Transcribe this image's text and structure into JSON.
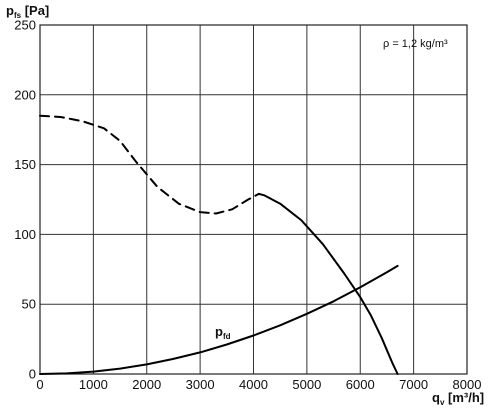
{
  "chart_data": {
    "type": "line",
    "xlabel_main": "q",
    "xlabel_sub": "v",
    "xlabel_unit": " [m³/h]",
    "ylabel_main": "p",
    "ylabel_sub": "fs",
    "ylabel_unit": " [Pa]",
    "xlim": [
      0,
      8000
    ],
    "ylim": [
      0,
      250
    ],
    "x_ticks": [
      0,
      1000,
      2000,
      3000,
      4000,
      5000,
      6000,
      7000,
      8000
    ],
    "y_ticks": [
      0,
      50,
      100,
      150,
      200,
      250
    ],
    "grid": true,
    "annotation": "ρ = 1,2 kg/m³",
    "series": [
      {
        "style": "dashed",
        "x": [
          0,
          400,
          800,
          1200,
          1500,
          1800,
          2200,
          2600,
          3000,
          3300,
          3600,
          3900,
          4100
        ],
        "y": [
          185,
          184,
          181,
          176,
          167,
          152,
          134,
          122,
          116,
          115,
          118,
          125,
          129
        ]
      },
      {
        "style": "solid",
        "x": [
          4100,
          4200,
          4500,
          4900,
          5300,
          5700,
          6000,
          6200,
          6400,
          6600,
          6700
        ],
        "y": [
          129,
          128,
          122,
          110,
          93,
          72,
          55,
          42,
          26,
          8,
          0
        ]
      },
      {
        "label_main": "p",
        "label_sub": "fd",
        "style": "solid",
        "x": [
          0,
          500,
          1000,
          1500,
          2000,
          2500,
          3000,
          3500,
          4000,
          4500,
          5000,
          5500,
          6000,
          6500,
          6700
        ],
        "y": [
          0,
          0.4,
          1.7,
          3.9,
          6.9,
          10.8,
          15.5,
          21.1,
          27.6,
          34.9,
          43.1,
          52.1,
          62.1,
          72.9,
          77.4
        ]
      }
    ]
  }
}
